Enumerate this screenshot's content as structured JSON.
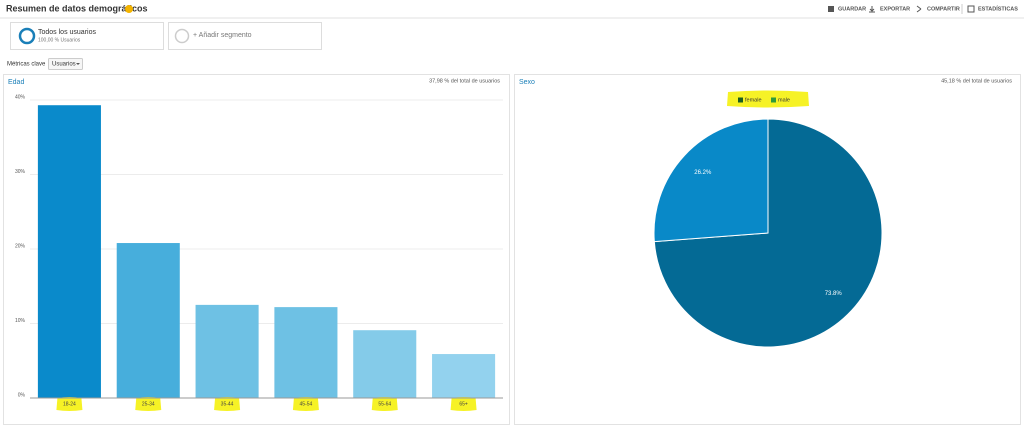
{
  "header": {
    "title": "Resumen de datos demográficos",
    "actions": [
      "GUARDAR",
      "EXPORTAR",
      "COMPARTIR",
      "ESTADÍSTICAS"
    ]
  },
  "segments": {
    "all_users": {
      "name": "Todos los usuarios",
      "detail": "100,00 % Usuarios"
    },
    "add": "+ Añadir segmento"
  },
  "metrics": {
    "label": "Métricas clave",
    "selected": "Usuarios"
  },
  "chart_data": [
    {
      "type": "bar",
      "title": "Edad",
      "subtitle": "37,98 % del total de usuarios",
      "categories": [
        "18-24",
        "25-34",
        "35-44",
        "45-54",
        "55-64",
        "65+"
      ],
      "values": [
        39.3,
        20.8,
        12.5,
        12.2,
        9.1,
        5.9
      ],
      "colors": [
        "#0a8acb",
        "#47aedc",
        "#6ec1e4",
        "#6ec1e4",
        "#84cbe9",
        "#93d2ee"
      ],
      "ylim": [
        0,
        40
      ],
      "yticks": [
        {
          "value": 0,
          "label": "0%"
        },
        {
          "value": 10,
          "label": "10%"
        },
        {
          "value": 20,
          "label": "20%"
        },
        {
          "value": 30,
          "label": "30%"
        },
        {
          "value": 40,
          "label": "40%"
        }
      ],
      "grid": true
    },
    {
      "type": "pie",
      "title": "Sexo",
      "subtitle": "45,18 % del total de usuarios",
      "categories": [
        "female",
        "male"
      ],
      "values": [
        73.8,
        26.2
      ],
      "value_labels": [
        "73.8%",
        "26.2%"
      ],
      "colors": [
        "#046a95",
        "#0989c8"
      ],
      "legend": "top"
    }
  ]
}
